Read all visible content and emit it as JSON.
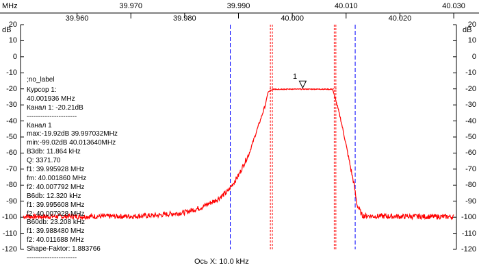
{
  "header": {
    "unit_x": "MHz",
    "top_ticks": [
      "39.960",
      "39.970",
      "39.980",
      "39.990",
      "40.000",
      "40.010",
      "40.020",
      "40.030"
    ]
  },
  "axis": {
    "unit_y_left": "dB",
    "unit_y_right": "dB",
    "y_ticks": [
      "20",
      "10",
      "0",
      "-10",
      "-20",
      "-30",
      "-40",
      "-50",
      "-60",
      "-70",
      "-80",
      "-90",
      "-100",
      "-110",
      "-120"
    ],
    "x_caption": "Ось X: 10.0 kHz"
  },
  "marker": {
    "label": "1"
  },
  "info": [
    ";no_label",
    "",
    "Курсор 1:",
    "40.001936 MHz",
    "Канал 1:  -20.21dB",
    "----------------------",
    "Канал 1",
    "max:-19.92dB 39.997032MHz",
    "min:-99.02dB 40.013640MHz",
    "B3db: 11.864 kHz",
    "Q: 3371.70",
    "f1: 39.995928 MHz",
    "fm: 40.001860 MHz",
    "f2: 40.007792 MHz",
    "B6db: 12.320 kHz",
    "f1: 39.995608 MHz",
    "f2: 40.007928 MHz",
    "B60db: 23.208 kHz",
    "f1: 39.988480 MHz",
    "f2: 40.011688 MHz",
    "Shape-Faktor: 1.883766",
    "----------------------"
  ],
  "chart_data": {
    "type": "line",
    "title": "",
    "xlabel": "Ось X: 10.0 kHz",
    "ylabel": "dB",
    "xlim": [
      39.9495,
      40.0305
    ],
    "ylim": [
      -120,
      20
    ],
    "grid": false,
    "series": [
      {
        "color": "#ff0000",
        "x": [
          39.95,
          39.96,
          39.97,
          39.975,
          39.98,
          39.983,
          39.986,
          39.988,
          39.99,
          39.992,
          39.994,
          39.995,
          39.9955,
          39.9965,
          40.0,
          40.005,
          40.0075,
          40.008,
          40.009,
          40.01,
          40.011,
          40.0115,
          40.012,
          40.013,
          40.015,
          40.02,
          40.025,
          40.03
        ],
        "values": [
          -99.5,
          -99.5,
          -99.4,
          -98.8,
          -97,
          -94,
          -89,
          -84,
          -74,
          -60,
          -40,
          -30,
          -22,
          -20.3,
          -20.2,
          -20.2,
          -20.3,
          -26,
          -39,
          -55,
          -72,
          -80,
          -92,
          -99,
          -99.3,
          -99.5,
          -99.6,
          -99.7
        ]
      }
    ],
    "vertical_lines": [
      {
        "x": 39.98848,
        "color": "#0000ff",
        "style": "dashed"
      },
      {
        "x": 39.995928,
        "color": "#ff0000",
        "style": "dashed"
      },
      {
        "x": 39.9963,
        "color": "#ff0000",
        "style": "dashed"
      },
      {
        "x": 40.007792,
        "color": "#ff0000",
        "style": "dashed"
      },
      {
        "x": 40.0081,
        "color": "#ff0000",
        "style": "dashed"
      },
      {
        "x": 40.011688,
        "color": "#0000ff",
        "style": "dashed"
      }
    ],
    "reference_lines": [
      {
        "y": -20,
        "color": "#ff0000",
        "style": "dotted"
      }
    ],
    "cursor": {
      "x": 40.001936,
      "y": -20.21
    }
  }
}
